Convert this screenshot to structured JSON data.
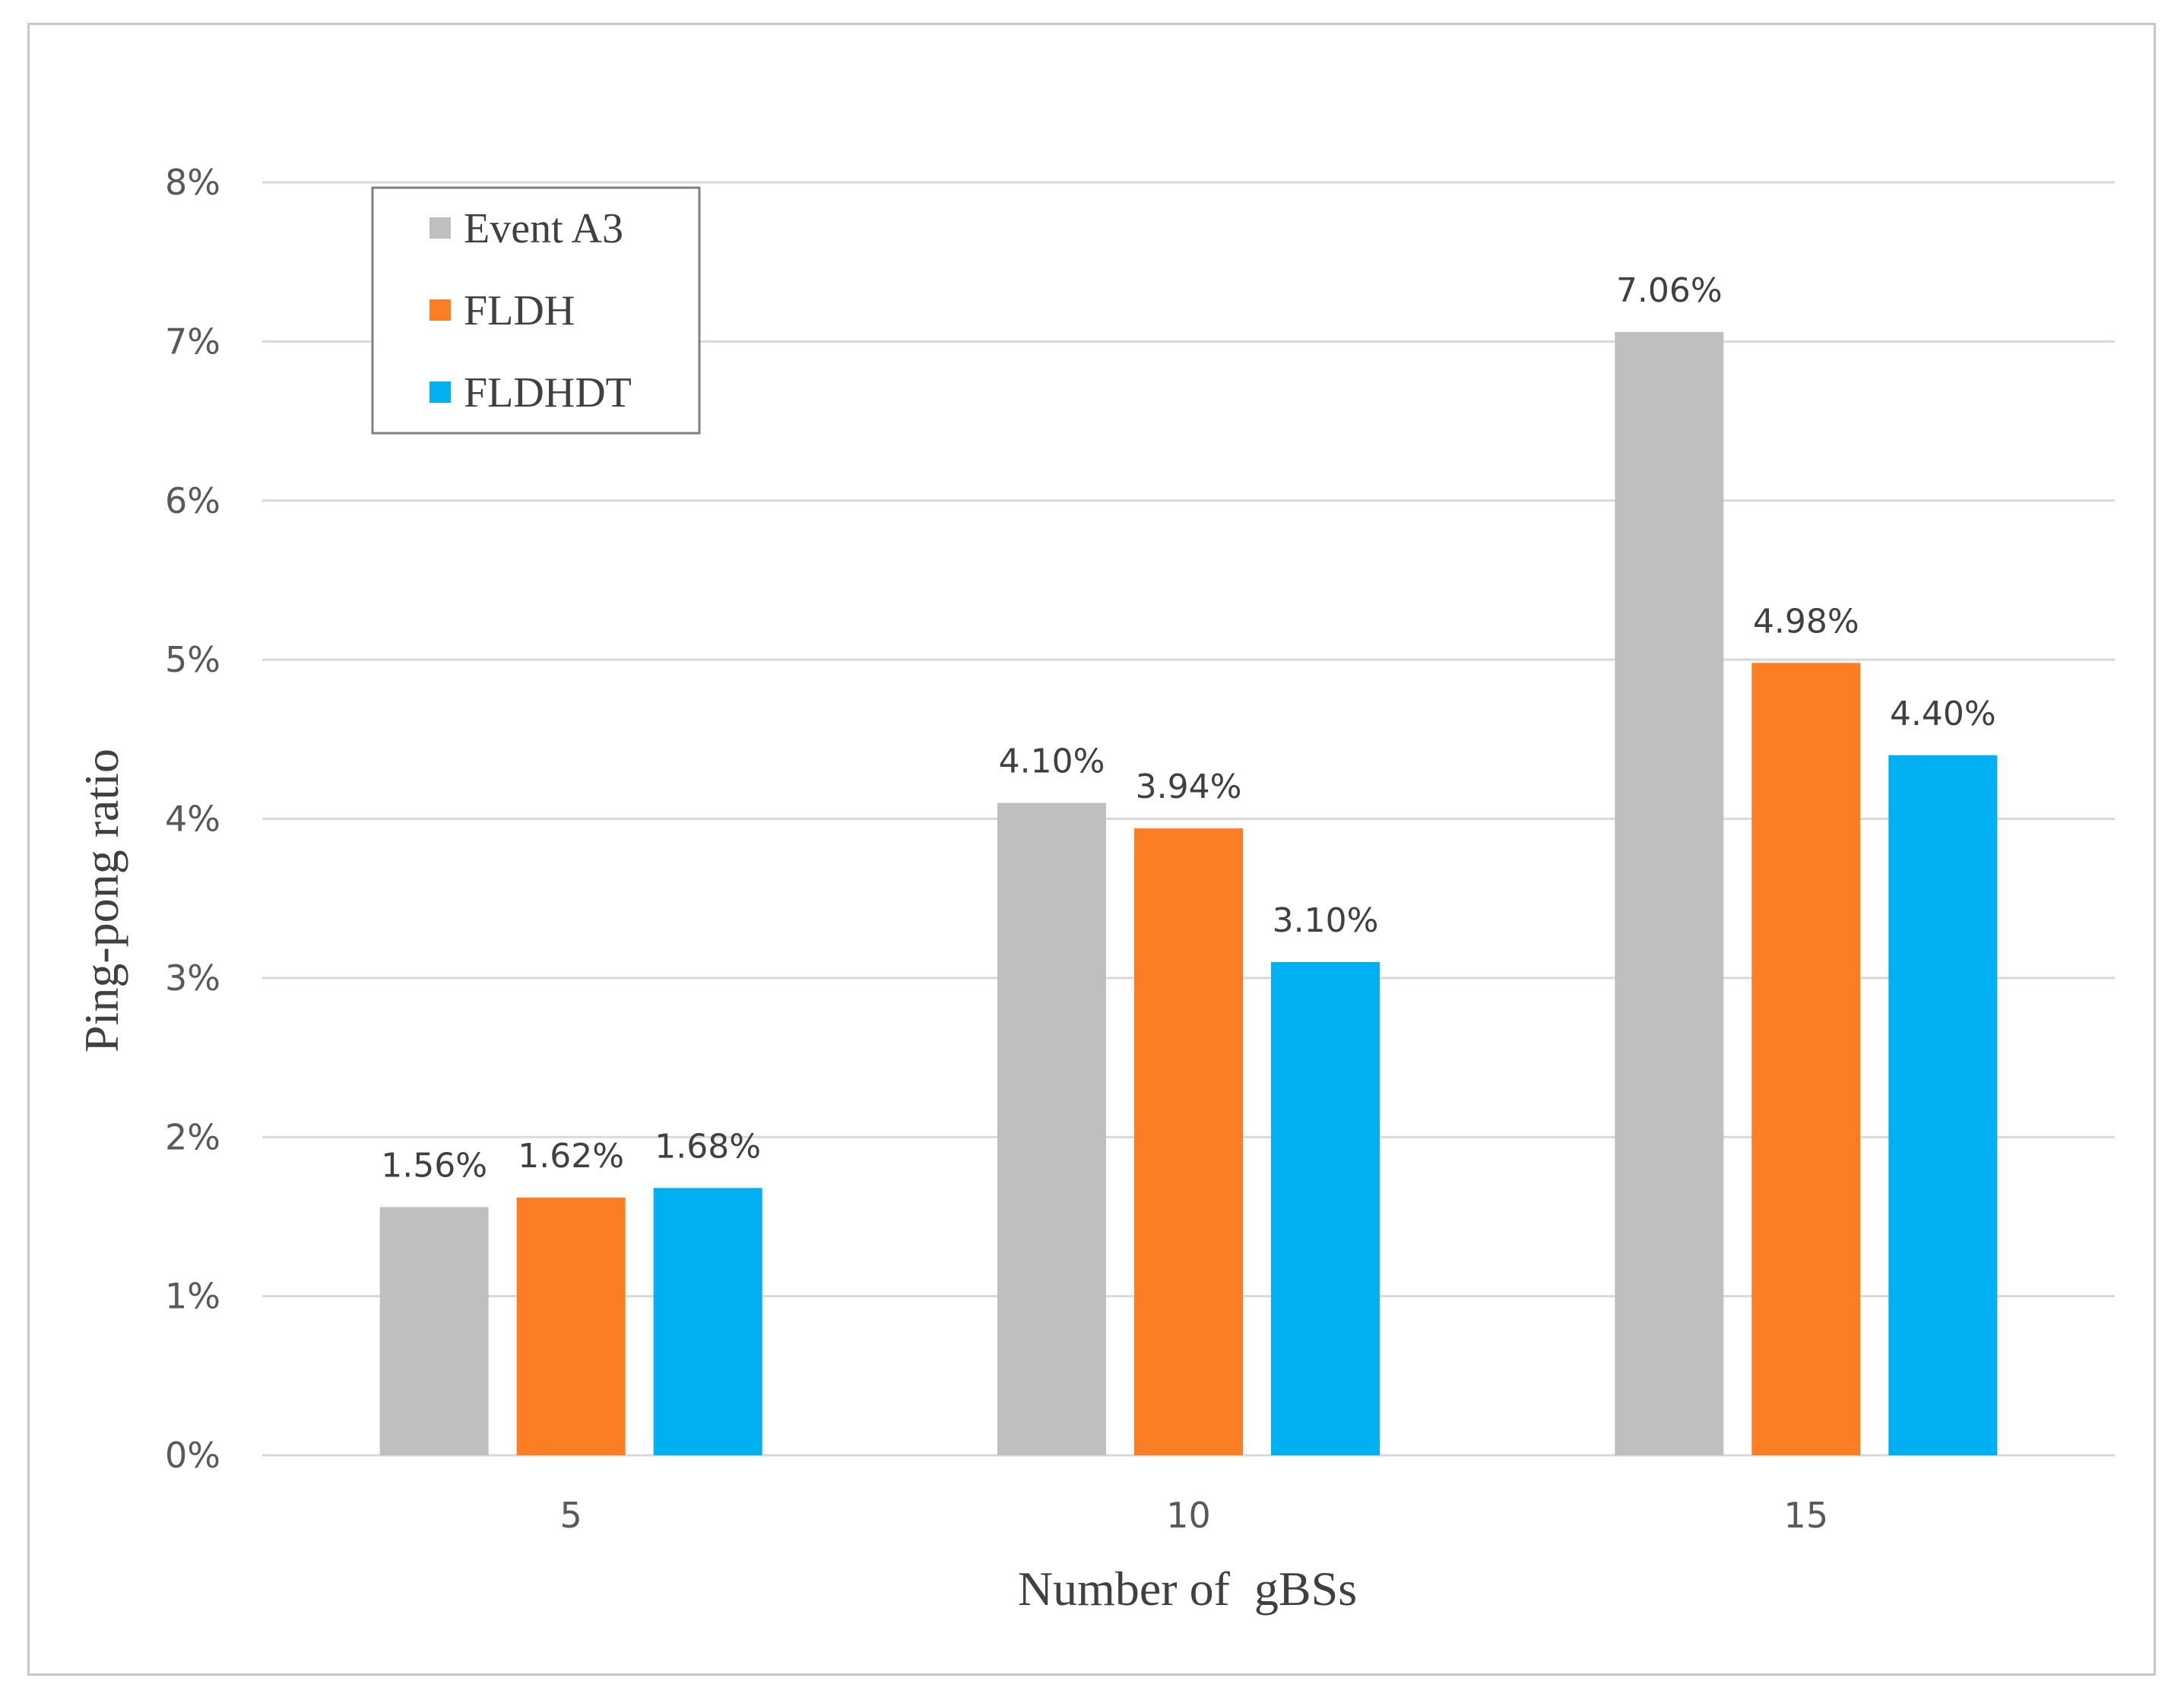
{
  "chart_data": {
    "type": "bar",
    "title": "",
    "xlabel": "Number of  gBSs",
    "ylabel": "Ping-pong ratio",
    "categories": [
      "5",
      "10",
      "15"
    ],
    "series": [
      {
        "name": "Event A3",
        "color": "#bfbfbf",
        "values": [
          1.56,
          4.1,
          7.06
        ],
        "labels": [
          "1.56%",
          "4.10%",
          "7.06%"
        ]
      },
      {
        "name": "FLDH",
        "color": "#fb7d24",
        "values": [
          1.62,
          3.94,
          4.98
        ],
        "labels": [
          "1.62%",
          "3.94%",
          "4.98%"
        ]
      },
      {
        "name": "FLDHDT",
        "color": "#00b0f0",
        "values": [
          1.68,
          3.1,
          4.4
        ],
        "labels": [
          "1.68%",
          "3.10%",
          "4.40%"
        ]
      }
    ],
    "ylim": [
      0,
      8
    ],
    "yticks": [
      "0%",
      "1%",
      "2%",
      "3%",
      "4%",
      "5%",
      "6%",
      "7%",
      "8%"
    ],
    "grid": true,
    "legend_position": "top-left"
  }
}
